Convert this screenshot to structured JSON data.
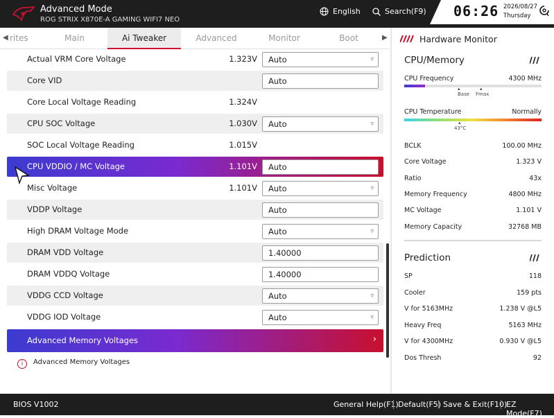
{
  "header": {
    "title": "Advanced Mode",
    "subtitle": "ROG STRIX X870E-A GAMING WIFI7 NEO",
    "language": "English",
    "search": "Search(F9)",
    "time": "06:26",
    "date": "2026/08/27",
    "weekday": "Thursday"
  },
  "tabs": [
    {
      "label": "rites"
    },
    {
      "label": "Main"
    },
    {
      "label": "Ai Tweaker",
      "active": true
    },
    {
      "label": "Advanced"
    },
    {
      "label": "Monitor"
    },
    {
      "label": "Boot"
    }
  ],
  "settings": [
    {
      "label": "Actual VRM Core Voltage",
      "value": "1.323V",
      "control": "Auto",
      "dropdown": true
    },
    {
      "label": "Core VID",
      "value": "",
      "control": "Auto",
      "dropdown": false
    },
    {
      "label": "Core Local Voltage Reading",
      "value": "1.324V",
      "control": "",
      "dropdown": false
    },
    {
      "label": "CPU SOC Voltage",
      "value": "1.030V",
      "control": "Auto",
      "dropdown": true
    },
    {
      "label": "SOC Local Voltage Reading",
      "value": "1.015V",
      "control": "",
      "dropdown": false
    },
    {
      "label": "CPU VDDIO / MC Voltage",
      "value": "1.101V",
      "control": "Auto",
      "dropdown": false,
      "selected": true
    },
    {
      "label": "Misc Voltage",
      "value": "1.101V",
      "control": "Auto",
      "dropdown": true
    },
    {
      "label": "VDDP Voltage",
      "value": "",
      "control": "Auto",
      "dropdown": false
    },
    {
      "label": "High DRAM Voltage Mode",
      "value": "",
      "control": "Auto",
      "dropdown": true
    },
    {
      "label": "DRAM VDD Voltage",
      "value": "",
      "control": "1.40000",
      "dropdown": false
    },
    {
      "label": "DRAM VDDQ Voltage",
      "value": "",
      "control": "1.40000",
      "dropdown": false
    },
    {
      "label": "VDDG CCD Voltage",
      "value": "",
      "control": "Auto",
      "dropdown": true
    },
    {
      "label": "VDDG IOD Voltage",
      "value": "",
      "control": "Auto",
      "dropdown": true
    }
  ],
  "submenu": {
    "label": "Advanced Memory Voltages"
  },
  "info": {
    "text": "Advanced Memory Voltages",
    "icon": "info-icon"
  },
  "hardware_monitor": {
    "title": "Hardware Monitor",
    "cpu_memory": {
      "title": "CPU/Memory",
      "cpu_frequency": {
        "label": "CPU Frequency",
        "value": "4300 MHz",
        "base_label": "Base",
        "fmax_label": "Fmax",
        "fill_fraction": 0.15
      },
      "cpu_temperature": {
        "label": "CPU Temperature",
        "value": "Normally",
        "reading": "43°C",
        "fill_fraction": 0.4
      },
      "rows": [
        {
          "label": "BCLK",
          "value": "100.00 MHz"
        },
        {
          "label": "Core Voltage",
          "value": "1.323 V"
        },
        {
          "label": "Ratio",
          "value": "43x"
        },
        {
          "label": "Memory Frequency",
          "value": "4800 MHz"
        },
        {
          "label": "MC Voltage",
          "value": "1.101 V"
        },
        {
          "label": "Memory Capacity",
          "value": "32768 MB"
        }
      ]
    },
    "prediction": {
      "title": "Prediction",
      "rows": [
        {
          "label": "SP",
          "value": "118"
        },
        {
          "label": "Cooler",
          "value": "159 pts"
        },
        {
          "label": "V for 5163MHz",
          "value": "1.238 V @L5"
        },
        {
          "label": "Heavy Freq",
          "value": "5163 MHz"
        },
        {
          "label": "V for 4300MHz",
          "value": "0.930 V @L5"
        },
        {
          "label": "Dos Thresh",
          "value": "92"
        }
      ]
    }
  },
  "footer": {
    "version": "BIOS V1002",
    "general_help": "General Help(F1)",
    "default": "Default(F5)",
    "save_exit": "Save & Exit(F10)",
    "ez_mode": "EZ Mode(F7)"
  },
  "colors": {
    "accent": "#c8102e",
    "highlight_start": "#3c3bd0",
    "header_bg": "#1e1e1e"
  }
}
